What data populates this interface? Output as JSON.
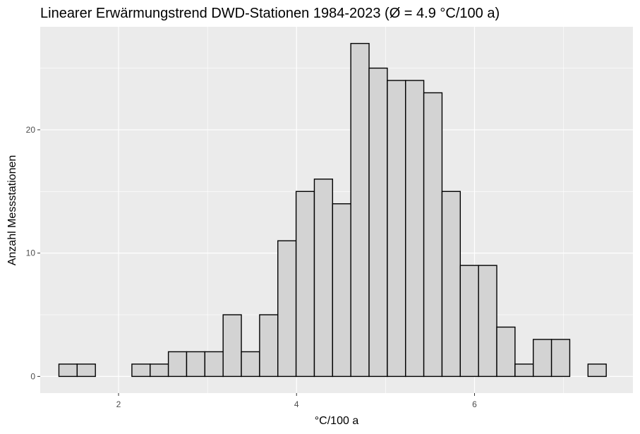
{
  "chart_data": {
    "type": "bar",
    "title": "Linearer Erwärmungstrend DWD-Stationen 1984-2023 (Ø = 4.9 °C/100 a)",
    "xlabel": "°C/100 a",
    "ylabel": "Anzahl Messstationen",
    "xlim": [
      1.12,
      7.78
    ],
    "ylim": [
      -1.35,
      28.35
    ],
    "x_ticks": [
      2,
      4,
      6
    ],
    "y_ticks": [
      0,
      10,
      20
    ],
    "grid": true,
    "bin_width": 0.205,
    "bin_starts": [
      1.33,
      1.535,
      1.74,
      1.945,
      2.15,
      2.355,
      2.56,
      2.765,
      2.97,
      3.175,
      3.38,
      3.585,
      3.79,
      3.995,
      4.2,
      4.405,
      4.61,
      4.815,
      5.02,
      5.225,
      5.43,
      5.635,
      5.84,
      6.045,
      6.25,
      6.455,
      6.66,
      6.865,
      7.07,
      7.275
    ],
    "values": [
      1,
      1,
      0,
      0,
      1,
      1,
      2,
      2,
      2,
      5,
      2,
      5,
      11,
      15,
      16,
      14,
      27,
      25,
      24,
      24,
      23,
      15,
      9,
      9,
      4,
      1,
      3,
      3,
      0,
      1
    ],
    "colors": {
      "panel_background": "#ebebeb",
      "grid": "#ffffff",
      "bar_fill": "#d3d3d3",
      "bar_stroke": "#000000"
    }
  }
}
